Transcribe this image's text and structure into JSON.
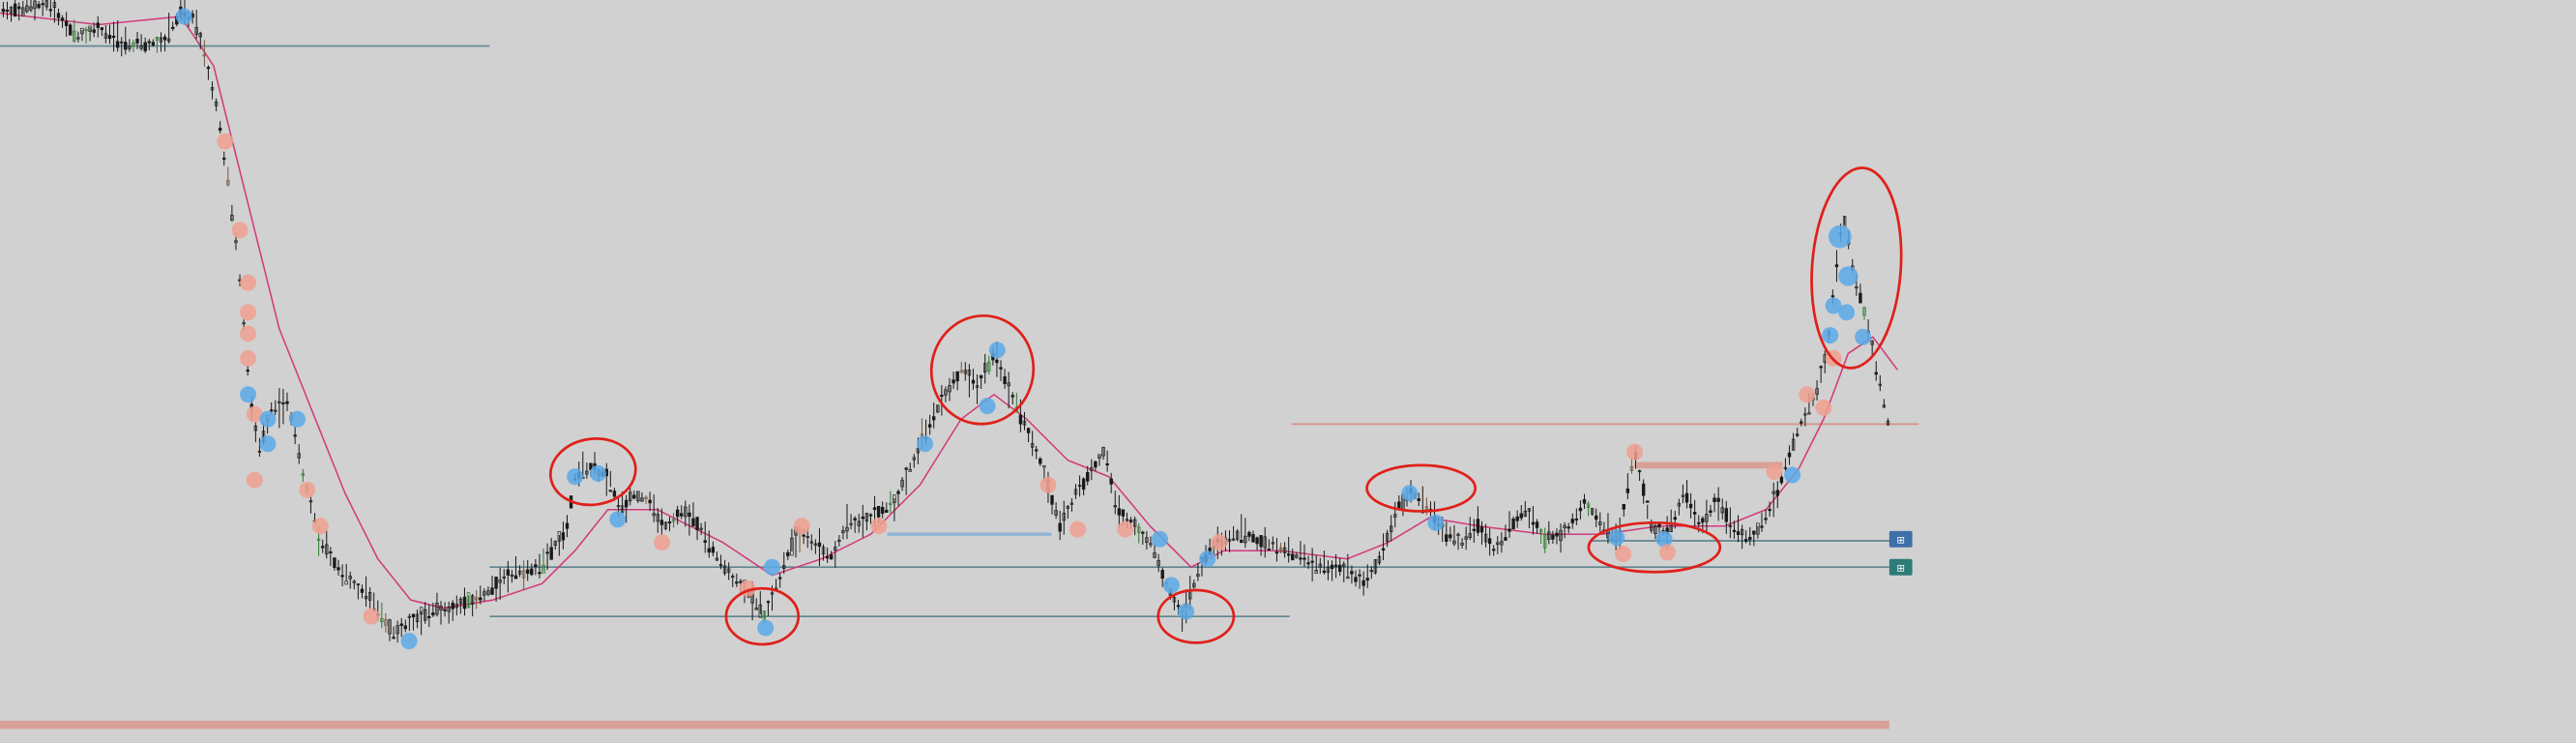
{
  "colors": {
    "background": "#d1d1d1",
    "candle": "#1a1a1a",
    "candle_green": "#2e7d32",
    "candle_brown": "#7a5a3a",
    "moving_average": "#d23a7a",
    "level_line_gray": "#5f8590",
    "level_line_blue": "#8fb4d6",
    "level_line_salmon": "#d8948a",
    "bottom_bar": "#d9a09a",
    "annotation_circle": "#e0201a",
    "marker_blue": "#5aa9e8",
    "marker_salmon": "#f0a090",
    "tag_blue": "#3d6fa8",
    "tag_teal": "#2e7c78"
  },
  "chart_data": {
    "type": "candlestick",
    "title": "",
    "xlabel": "",
    "ylabel": "",
    "grid": false,
    "x_range": [
      0,
      1168
    ],
    "y_range_inverted_chart_units": [
      0,
      452
    ],
    "price_path_anchors": [
      [
        0,
        8
      ],
      [
        30,
        2
      ],
      [
        45,
        22
      ],
      [
        60,
        18
      ],
      [
        80,
        28
      ],
      [
        100,
        25
      ],
      [
        110,
        8
      ],
      [
        118,
        12
      ],
      [
        125,
        35
      ],
      [
        133,
        70
      ],
      [
        140,
        120
      ],
      [
        146,
        170
      ],
      [
        152,
        240
      ],
      [
        158,
        275
      ],
      [
        165,
        250
      ],
      [
        175,
        245
      ],
      [
        185,
        290
      ],
      [
        195,
        330
      ],
      [
        210,
        350
      ],
      [
        225,
        365
      ],
      [
        240,
        385
      ],
      [
        255,
        375
      ],
      [
        270,
        370
      ],
      [
        290,
        365
      ],
      [
        310,
        350
      ],
      [
        330,
        345
      ],
      [
        345,
        320
      ],
      [
        350,
        290
      ],
      [
        360,
        285
      ],
      [
        370,
        290
      ],
      [
        378,
        310
      ],
      [
        385,
        300
      ],
      [
        395,
        305
      ],
      [
        405,
        320
      ],
      [
        415,
        310
      ],
      [
        425,
        320
      ],
      [
        440,
        345
      ],
      [
        455,
        360
      ],
      [
        465,
        375
      ],
      [
        475,
        350
      ],
      [
        485,
        325
      ],
      [
        495,
        330
      ],
      [
        505,
        340
      ],
      [
        515,
        320
      ],
      [
        530,
        315
      ],
      [
        545,
        305
      ],
      [
        560,
        270
      ],
      [
        575,
        240
      ],
      [
        585,
        225
      ],
      [
        595,
        235
      ],
      [
        605,
        215
      ],
      [
        615,
        240
      ],
      [
        625,
        260
      ],
      [
        635,
        285
      ],
      [
        645,
        320
      ],
      [
        655,
        300
      ],
      [
        665,
        285
      ],
      [
        672,
        275
      ],
      [
        680,
        310
      ],
      [
        690,
        320
      ],
      [
        700,
        330
      ],
      [
        710,
        355
      ],
      [
        720,
        375
      ],
      [
        730,
        345
      ],
      [
        740,
        330
      ],
      [
        755,
        325
      ],
      [
        770,
        330
      ],
      [
        785,
        335
      ],
      [
        800,
        345
      ],
      [
        815,
        345
      ],
      [
        830,
        355
      ],
      [
        840,
        340
      ],
      [
        850,
        310
      ],
      [
        860,
        300
      ],
      [
        870,
        310
      ],
      [
        880,
        325
      ],
      [
        890,
        330
      ],
      [
        900,
        320
      ],
      [
        910,
        335
      ],
      [
        920,
        320
      ],
      [
        930,
        310
      ],
      [
        940,
        330
      ],
      [
        955,
        320
      ],
      [
        965,
        305
      ],
      [
        975,
        320
      ],
      [
        985,
        330
      ],
      [
        995,
        275
      ],
      [
        1005,
        320
      ],
      [
        1015,
        325
      ],
      [
        1025,
        300
      ],
      [
        1035,
        320
      ],
      [
        1045,
        305
      ],
      [
        1055,
        320
      ],
      [
        1065,
        330
      ],
      [
        1075,
        315
      ],
      [
        1085,
        290
      ],
      [
        1095,
        260
      ],
      [
        1105,
        240
      ],
      [
        1112,
        215
      ],
      [
        1118,
        160
      ],
      [
        1122,
        130
      ],
      [
        1128,
        165
      ],
      [
        1135,
        190
      ],
      [
        1142,
        225
      ],
      [
        1150,
        260
      ]
    ],
    "moving_average_anchors": [
      [
        0,
        8
      ],
      [
        60,
        15
      ],
      [
        110,
        10
      ],
      [
        130,
        40
      ],
      [
        150,
        120
      ],
      [
        170,
        200
      ],
      [
        190,
        250
      ],
      [
        210,
        300
      ],
      [
        230,
        340
      ],
      [
        250,
        365
      ],
      [
        270,
        370
      ],
      [
        300,
        365
      ],
      [
        330,
        355
      ],
      [
        350,
        335
      ],
      [
        370,
        310
      ],
      [
        400,
        310
      ],
      [
        440,
        330
      ],
      [
        470,
        350
      ],
      [
        500,
        340
      ],
      [
        530,
        325
      ],
      [
        560,
        295
      ],
      [
        585,
        255
      ],
      [
        605,
        240
      ],
      [
        625,
        255
      ],
      [
        650,
        280
      ],
      [
        675,
        290
      ],
      [
        700,
        320
      ],
      [
        725,
        345
      ],
      [
        745,
        335
      ],
      [
        780,
        335
      ],
      [
        820,
        340
      ],
      [
        845,
        330
      ],
      [
        870,
        315
      ],
      [
        900,
        320
      ],
      [
        940,
        325
      ],
      [
        975,
        325
      ],
      [
        1010,
        320
      ],
      [
        1050,
        320
      ],
      [
        1075,
        310
      ],
      [
        1095,
        285
      ],
      [
        1110,
        255
      ],
      [
        1125,
        215
      ],
      [
        1140,
        205
      ],
      [
        1155,
        225
      ]
    ],
    "horizontal_levels": [
      {
        "y": 28,
        "x_start": 0,
        "x_end": 298,
        "style": "gray"
      },
      {
        "y": 325,
        "x_start": 540,
        "x_end": 640,
        "style": "blue"
      },
      {
        "y": 345,
        "x_start": 298,
        "x_end": 1150,
        "style": "gray"
      },
      {
        "y": 375,
        "x_start": 298,
        "x_end": 785,
        "style": "gray"
      },
      {
        "y": 258,
        "x_start": 786,
        "x_end": 1168,
        "style": "salmon"
      },
      {
        "y": 329,
        "x_start": 968,
        "x_end": 1150,
        "style": "gray"
      }
    ],
    "zones": [
      {
        "y": 283,
        "x_start": 995,
        "x_end": 1085,
        "style": "salmon"
      }
    ],
    "bottom_bar": {
      "y": 441,
      "x_start": 0,
      "x_end": 1150
    },
    "markers": [
      {
        "x": 112,
        "y": 10,
        "color": "blue",
        "r": 5
      },
      {
        "x": 137,
        "y": 86,
        "color": "salmon",
        "r": 5
      },
      {
        "x": 146,
        "y": 140,
        "color": "salmon",
        "r": 5
      },
      {
        "x": 151,
        "y": 172,
        "color": "salmon",
        "r": 5
      },
      {
        "x": 151,
        "y": 190,
        "color": "salmon",
        "r": 5
      },
      {
        "x": 151,
        "y": 203,
        "color": "salmon",
        "r": 5
      },
      {
        "x": 151,
        "y": 218,
        "color": "salmon",
        "r": 5
      },
      {
        "x": 151,
        "y": 240,
        "color": "blue",
        "r": 5
      },
      {
        "x": 155,
        "y": 252,
        "color": "salmon",
        "r": 5
      },
      {
        "x": 163,
        "y": 255,
        "color": "blue",
        "r": 5
      },
      {
        "x": 163,
        "y": 270,
        "color": "blue",
        "r": 5
      },
      {
        "x": 155,
        "y": 292,
        "color": "salmon",
        "r": 5
      },
      {
        "x": 181,
        "y": 255,
        "color": "blue",
        "r": 5
      },
      {
        "x": 187,
        "y": 298,
        "color": "salmon",
        "r": 5
      },
      {
        "x": 195,
        "y": 320,
        "color": "salmon",
        "r": 5
      },
      {
        "x": 226,
        "y": 375,
        "color": "salmon",
        "r": 5
      },
      {
        "x": 249,
        "y": 390,
        "color": "blue",
        "r": 5
      },
      {
        "x": 350,
        "y": 290,
        "color": "blue",
        "r": 5
      },
      {
        "x": 364,
        "y": 288,
        "color": "blue",
        "r": 5
      },
      {
        "x": 376,
        "y": 316,
        "color": "blue",
        "r": 5
      },
      {
        "x": 403,
        "y": 330,
        "color": "salmon",
        "r": 5
      },
      {
        "x": 455,
        "y": 358,
        "color": "salmon",
        "r": 5
      },
      {
        "x": 466,
        "y": 382,
        "color": "blue",
        "r": 5
      },
      {
        "x": 470,
        "y": 345,
        "color": "blue",
        "r": 5
      },
      {
        "x": 488,
        "y": 320,
        "color": "salmon",
        "r": 5
      },
      {
        "x": 535,
        "y": 320,
        "color": "salmon",
        "r": 5
      },
      {
        "x": 563,
        "y": 270,
        "color": "blue",
        "r": 5
      },
      {
        "x": 607,
        "y": 213,
        "color": "blue",
        "r": 5
      },
      {
        "x": 601,
        "y": 247,
        "color": "blue",
        "r": 5
      },
      {
        "x": 638,
        "y": 295,
        "color": "salmon",
        "r": 5
      },
      {
        "x": 656,
        "y": 322,
        "color": "salmon",
        "r": 5
      },
      {
        "x": 685,
        "y": 322,
        "color": "salmon",
        "r": 5
      },
      {
        "x": 706,
        "y": 328,
        "color": "blue",
        "r": 5
      },
      {
        "x": 713,
        "y": 356,
        "color": "blue",
        "r": 5
      },
      {
        "x": 722,
        "y": 372,
        "color": "blue",
        "r": 5
      },
      {
        "x": 735,
        "y": 340,
        "color": "blue",
        "r": 5
      },
      {
        "x": 742,
        "y": 330,
        "color": "salmon",
        "r": 5
      },
      {
        "x": 858,
        "y": 300,
        "color": "blue",
        "r": 5
      },
      {
        "x": 874,
        "y": 318,
        "color": "blue",
        "r": 5
      },
      {
        "x": 984,
        "y": 327,
        "color": "blue",
        "r": 5
      },
      {
        "x": 988,
        "y": 337,
        "color": "salmon",
        "r": 5
      },
      {
        "x": 995,
        "y": 275,
        "color": "salmon",
        "r": 5
      },
      {
        "x": 1013,
        "y": 328,
        "color": "blue",
        "r": 5
      },
      {
        "x": 1015,
        "y": 336,
        "color": "salmon",
        "r": 5
      },
      {
        "x": 1080,
        "y": 287,
        "color": "salmon",
        "r": 5
      },
      {
        "x": 1091,
        "y": 289,
        "color": "blue",
        "r": 5
      },
      {
        "x": 1100,
        "y": 240,
        "color": "salmon",
        "r": 5
      },
      {
        "x": 1110,
        "y": 248,
        "color": "salmon",
        "r": 5
      },
      {
        "x": 1120,
        "y": 144,
        "color": "blue",
        "r": 7
      },
      {
        "x": 1116,
        "y": 186,
        "color": "blue",
        "r": 5
      },
      {
        "x": 1125,
        "y": 168,
        "color": "blue",
        "r": 6
      },
      {
        "x": 1114,
        "y": 204,
        "color": "blue",
        "r": 5
      },
      {
        "x": 1124,
        "y": 190,
        "color": "blue",
        "r": 5
      },
      {
        "x": 1116,
        "y": 218,
        "color": "salmon",
        "r": 5
      },
      {
        "x": 1134,
        "y": 205,
        "color": "blue",
        "r": 5
      }
    ],
    "annotations": [
      {
        "cx": 361,
        "cy": 287,
        "rx": 26,
        "ry": 20,
        "rot": -8
      },
      {
        "cx": 464,
        "cy": 375,
        "rx": 22,
        "ry": 17,
        "rot": 0
      },
      {
        "cx": 598,
        "cy": 225,
        "rx": 31,
        "ry": 33,
        "rot": 10
      },
      {
        "cx": 728,
        "cy": 375,
        "rx": 23,
        "ry": 16,
        "rot": 0
      },
      {
        "cx": 865,
        "cy": 297,
        "rx": 33,
        "ry": 14,
        "rot": 0
      },
      {
        "cx": 1007,
        "cy": 333,
        "rx": 40,
        "ry": 15,
        "rot": 0
      },
      {
        "cx": 1130,
        "cy": 163,
        "rx": 27,
        "ry": 61,
        "rot": 4
      }
    ],
    "price_tags": [
      {
        "x": 1150,
        "y": 323,
        "style": "blue"
      },
      {
        "x": 1150,
        "y": 340,
        "style": "teal"
      }
    ]
  }
}
